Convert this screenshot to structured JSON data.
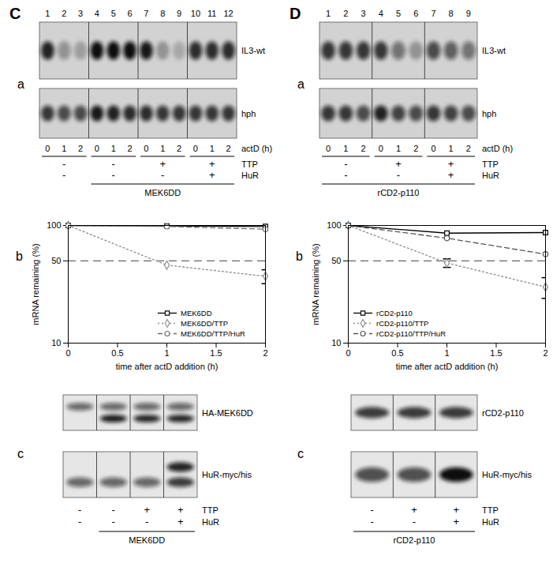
{
  "chart_data": [
    {
      "type": "line",
      "title": "b",
      "x_label": "time after actD addition (h)",
      "y_label": "mRNA remaining (%)",
      "x": [
        0,
        1,
        2
      ],
      "series": [
        {
          "name": "MEK6DD",
          "color": "#000000",
          "marker": "square",
          "line_style": "solid",
          "values": [
            100,
            99,
            98
          ]
        },
        {
          "name": "MEK6DD/TTP",
          "color": "#8c8c8c",
          "marker": "diamond",
          "line_style": "dotted",
          "values": [
            100,
            46,
            37
          ],
          "errors": [
            null,
            null,
            5
          ]
        },
        {
          "name": "MEK6DD/TTP/HuR",
          "color": "#6e6e6e",
          "marker": "circle",
          "line_style": "dashed",
          "values": [
            100,
            98,
            93
          ]
        }
      ],
      "xlim": [
        0,
        2
      ],
      "xticks": [
        0,
        0.5,
        1,
        1.5,
        2
      ],
      "ylim": [
        10,
        100
      ],
      "yticks": [
        10,
        50,
        100
      ],
      "log": "y",
      "grid": false,
      "legend": "bottom-right",
      "reference_line": 50
    },
    {
      "type": "line",
      "title": "b",
      "x_label": "time after actD addition (h)",
      "y_label": "mRNA remaining (%)",
      "x": [
        0,
        1,
        2
      ],
      "series": [
        {
          "name": "rCD2-p110",
          "color": "#000000",
          "marker": "square",
          "line_style": "solid",
          "values": [
            100,
            86,
            87
          ]
        },
        {
          "name": "rCD2-p110/TTP",
          "color": "#8c8c8c",
          "marker": "diamond",
          "line_style": "dotted",
          "values": [
            100,
            48,
            30
          ],
          "errors": [
            null,
            4,
            6
          ]
        },
        {
          "name": "rCD2-p110/TTP/HuR",
          "color": "#555555",
          "marker": "circle",
          "line_style": "dashed",
          "values": [
            100,
            78,
            57
          ]
        }
      ],
      "xlim": [
        0,
        2
      ],
      "xticks": [
        0,
        0.5,
        1,
        1.5,
        2
      ],
      "ylim": [
        10,
        100
      ],
      "yticks": [
        10,
        50,
        100
      ],
      "log": "y",
      "grid": false,
      "legend": "bottom-left",
      "reference_line": 50
    }
  ],
  "figure": {
    "panels": [
      {
        "label": "C",
        "northern": {
          "label": "a",
          "lane_numbers": [
            1,
            2,
            3,
            4,
            5,
            6,
            7,
            8,
            9,
            10,
            11,
            12
          ],
          "blots": [
            {
              "name": "IL3-wt",
              "bands": [
                [
                  0.9
                ],
                [
                  0.35
                ],
                [
                  0.25
                ],
                [
                  1
                ],
                [
                  1
                ],
                [
                  1
                ],
                [
                  0.95
                ],
                [
                  0.3
                ],
                [
                  0.2
                ],
                [
                  0.85
                ],
                [
                  0.85
                ],
                [
                  0.85
                ]
              ]
            },
            {
              "name": "hph",
              "bands": [
                [
                  0.8
                ],
                [
                  0.7
                ],
                [
                  0.7
                ],
                [
                  0.95
                ],
                [
                  0.9
                ],
                [
                  0.85
                ],
                [
                  0.85
                ],
                [
                  0.8
                ],
                [
                  0.8
                ],
                [
                  0.8
                ],
                [
                  0.8
                ],
                [
                  0.8
                ]
              ]
            }
          ],
          "times": [
            0,
            1,
            2,
            0,
            1,
            2,
            0,
            1,
            2,
            0,
            1,
            2
          ],
          "time_label": "actD (h)",
          "condition_rows": [
            "TTP",
            "HuR"
          ],
          "conditions": [
            [
              "-",
              "-"
            ],
            [
              "-",
              "-"
            ],
            [
              "+",
              "-"
            ],
            [
              "+",
              "+"
            ]
          ],
          "bracket": {
            "text": "MEK6DD",
            "first": 1,
            "last": 3
          }
        },
        "western": {
          "label": "c",
          "blots": [
            {
              "name": "HA-MEK6DD",
              "bands": [
                [
                  0.6,
                  0
                ],
                [
                  0.6,
                  0.95
                ],
                [
                  0.6,
                  0.9
                ],
                [
                  0.6,
                  0.9
                ]
              ]
            },
            {
              "name": "HuR-myc/his",
              "bands": [
                [
                  0,
                  0.6
                ],
                [
                  0,
                  0.6
                ],
                [
                  0,
                  0.6
                ],
                [
                  0.9,
                  0.8
                ]
              ]
            }
          ],
          "condition_rows": [
            "TTP",
            "HuR"
          ],
          "conditions": [
            [
              "-",
              "-"
            ],
            [
              "-",
              "-"
            ],
            [
              "+",
              "-"
            ],
            [
              "+",
              "+"
            ]
          ],
          "bracket": {
            "text": "MEK6DD",
            "first": 1,
            "last": 3
          }
        }
      },
      {
        "label": "D",
        "northern": {
          "label": "a",
          "lane_numbers": [
            1,
            2,
            3,
            4,
            5,
            6,
            7,
            8,
            9
          ],
          "blots": [
            {
              "name": "IL3-wt",
              "bands": [
                [
                  0.8
                ],
                [
                  0.8
                ],
                [
                  0.8
                ],
                [
                  0.8
                ],
                [
                  0.5
                ],
                [
                  0.3
                ],
                [
                  0.7
                ],
                [
                  0.6
                ],
                [
                  0.5
                ]
              ]
            },
            {
              "name": "hph",
              "bands": [
                [
                  0.8
                ],
                [
                  0.8
                ],
                [
                  0.7
                ],
                [
                  0.9
                ],
                [
                  0.75
                ],
                [
                  0.7
                ],
                [
                  0.8
                ],
                [
                  0.75
                ],
                [
                  0.7
                ]
              ]
            }
          ],
          "times": [
            0,
            1,
            2,
            0,
            1,
            2,
            0,
            1,
            2
          ],
          "time_label": "actD (h)",
          "condition_rows": [
            "TTP",
            "HuR"
          ],
          "conditions": [
            [
              "-",
              "-"
            ],
            [
              "+",
              "-"
            ],
            [
              "+",
              "+"
            ]
          ],
          "bracket": {
            "text": "rCD2-p110",
            "first": 0,
            "last": 2
          }
        },
        "western": {
          "label": "c",
          "blots": [
            {
              "name": "rCD2-p110",
              "bands": [
                [
                  0.8
                ],
                [
                  0.8
                ],
                [
                  0.8
                ]
              ]
            },
            {
              "name": "HuR-myc/his",
              "bands": [
                [
                  0.7
                ],
                [
                  0.7
                ],
                [
                  1
                ]
              ]
            }
          ],
          "condition_rows": [
            "TTP",
            "HuR"
          ],
          "conditions": [
            [
              "-",
              "-"
            ],
            [
              "+",
              "-"
            ],
            [
              "+",
              "+"
            ]
          ],
          "bracket": {
            "text": "rCD2-p110",
            "first": 0,
            "last": 2
          }
        }
      }
    ]
  }
}
